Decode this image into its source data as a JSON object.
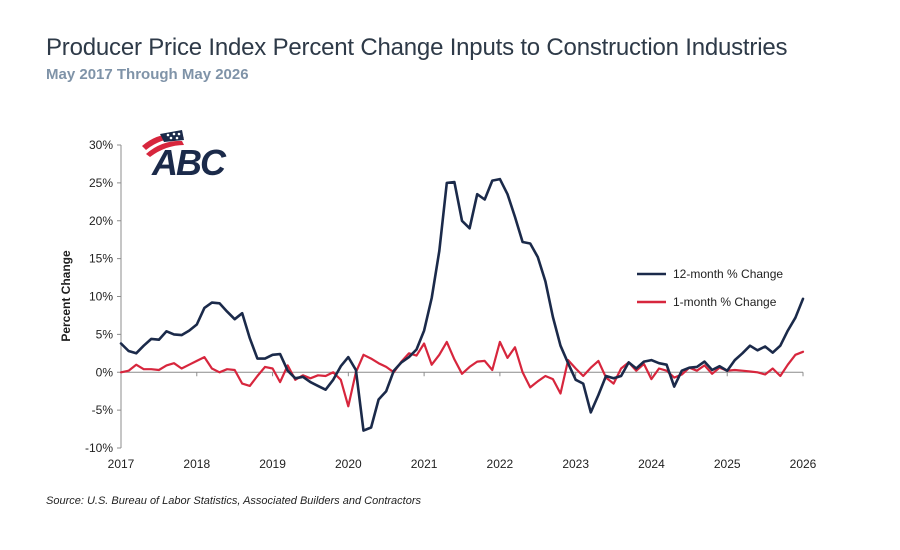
{
  "header": {
    "title": "Producer Price Index Percent Change Inputs to Construction Industries",
    "subtitle": "May 2017 Through May 2026"
  },
  "footer": {
    "source": "Source: U.S. Bureau of Labor Statistics, Associated Builders and Contractors"
  },
  "logo": {
    "text": "ABC",
    "colors": {
      "navy": "#1b2a4a",
      "red": "#d7263d"
    }
  },
  "chart_data": {
    "type": "line",
    "ylabel": "Percent Change",
    "ylim": [
      -10,
      30
    ],
    "yticks": [
      -10,
      -5,
      0,
      5,
      10,
      15,
      20,
      25,
      30
    ],
    "ytick_labels": [
      "-10%",
      "-5%",
      "0%",
      "5%",
      "10%",
      "15%",
      "20%",
      "25%",
      "30%"
    ],
    "xlim": [
      2017,
      2026
    ],
    "xticks": [
      2017,
      2018,
      2019,
      2020,
      2021,
      2022,
      2023,
      2024,
      2025,
      2026
    ],
    "xtick_labels": [
      "2017",
      "2018",
      "2019",
      "2020",
      "2021",
      "2022",
      "2023",
      "2024",
      "2025",
      "2026"
    ],
    "legend_position": "right",
    "grid": false,
    "series": [
      {
        "name": "12-month % Change",
        "color": "#1b2a4a",
        "points": [
          [
            2017.0,
            3.8
          ],
          [
            2017.1,
            2.8
          ],
          [
            2017.2,
            2.5
          ],
          [
            2017.3,
            3.5
          ],
          [
            2017.4,
            4.4
          ],
          [
            2017.5,
            4.3
          ],
          [
            2017.6,
            5.4
          ],
          [
            2017.7,
            5.0
          ],
          [
            2017.8,
            4.9
          ],
          [
            2017.9,
            5.5
          ],
          [
            2018.0,
            6.3
          ],
          [
            2018.1,
            8.5
          ],
          [
            2018.2,
            9.2
          ],
          [
            2018.3,
            9.1
          ],
          [
            2018.4,
            8.0
          ],
          [
            2018.5,
            7.0
          ],
          [
            2018.6,
            7.8
          ],
          [
            2018.7,
            4.5
          ],
          [
            2018.8,
            1.8
          ],
          [
            2018.9,
            1.8
          ],
          [
            2019.0,
            2.3
          ],
          [
            2019.1,
            2.4
          ],
          [
            2019.2,
            0.2
          ],
          [
            2019.3,
            -0.8
          ],
          [
            2019.4,
            -0.6
          ],
          [
            2019.5,
            -1.3
          ],
          [
            2019.6,
            -1.8
          ],
          [
            2019.7,
            -2.3
          ],
          [
            2019.8,
            -1.0
          ],
          [
            2019.9,
            0.8
          ],
          [
            2020.0,
            2.0
          ],
          [
            2020.1,
            0.3
          ],
          [
            2020.2,
            -7.7
          ],
          [
            2020.3,
            -7.3
          ],
          [
            2020.4,
            -3.6
          ],
          [
            2020.5,
            -2.5
          ],
          [
            2020.6,
            0.2
          ],
          [
            2020.7,
            1.3
          ],
          [
            2020.8,
            2.0
          ],
          [
            2020.9,
            3.0
          ],
          [
            2021.0,
            5.5
          ],
          [
            2021.1,
            9.8
          ],
          [
            2021.2,
            16.0
          ],
          [
            2021.3,
            25.0
          ],
          [
            2021.4,
            25.1
          ],
          [
            2021.5,
            20.0
          ],
          [
            2021.6,
            19.0
          ],
          [
            2021.7,
            23.5
          ],
          [
            2021.8,
            22.8
          ],
          [
            2021.9,
            25.3
          ],
          [
            2022.0,
            25.5
          ],
          [
            2022.1,
            23.5
          ],
          [
            2022.2,
            20.5
          ],
          [
            2022.3,
            17.2
          ],
          [
            2022.4,
            17.0
          ],
          [
            2022.5,
            15.2
          ],
          [
            2022.6,
            12.0
          ],
          [
            2022.7,
            7.3
          ],
          [
            2022.8,
            3.5
          ],
          [
            2022.9,
            1.2
          ],
          [
            2023.0,
            -1.0
          ],
          [
            2023.1,
            -1.5
          ],
          [
            2023.2,
            -5.3
          ],
          [
            2023.3,
            -3.0
          ],
          [
            2023.4,
            -0.5
          ],
          [
            2023.5,
            -0.8
          ],
          [
            2023.6,
            -0.5
          ],
          [
            2023.7,
            1.3
          ],
          [
            2023.8,
            0.5
          ],
          [
            2023.9,
            1.4
          ],
          [
            2024.0,
            1.6
          ],
          [
            2024.1,
            1.2
          ],
          [
            2024.2,
            1.0
          ],
          [
            2024.3,
            -1.9
          ],
          [
            2024.4,
            0.2
          ],
          [
            2024.5,
            0.6
          ],
          [
            2024.6,
            0.7
          ],
          [
            2024.7,
            1.4
          ],
          [
            2024.8,
            0.3
          ],
          [
            2024.9,
            0.8
          ],
          [
            2025.0,
            0.2
          ],
          [
            2025.1,
            1.6
          ],
          [
            2025.2,
            2.5
          ],
          [
            2025.3,
            3.5
          ],
          [
            2025.4,
            2.9
          ],
          [
            2025.5,
            3.4
          ],
          [
            2025.6,
            2.6
          ],
          [
            2025.7,
            3.5
          ],
          [
            2025.8,
            5.5
          ],
          [
            2025.9,
            7.2
          ],
          [
            2026.0,
            9.7
          ]
        ]
      },
      {
        "name": "1-month % Change",
        "color": "#d7263d",
        "points": [
          [
            2017.0,
            0.0
          ],
          [
            2017.1,
            0.2
          ],
          [
            2017.2,
            1.0
          ],
          [
            2017.3,
            0.4
          ],
          [
            2017.4,
            0.4
          ],
          [
            2017.5,
            0.3
          ],
          [
            2017.6,
            0.9
          ],
          [
            2017.7,
            1.2
          ],
          [
            2017.8,
            0.5
          ],
          [
            2017.9,
            1.0
          ],
          [
            2018.0,
            1.5
          ],
          [
            2018.1,
            2.0
          ],
          [
            2018.2,
            0.5
          ],
          [
            2018.3,
            0.0
          ],
          [
            2018.4,
            0.4
          ],
          [
            2018.5,
            0.3
          ],
          [
            2018.6,
            -1.5
          ],
          [
            2018.7,
            -1.8
          ],
          [
            2018.8,
            -0.5
          ],
          [
            2018.9,
            0.7
          ],
          [
            2019.0,
            0.5
          ],
          [
            2019.1,
            -1.3
          ],
          [
            2019.2,
            0.9
          ],
          [
            2019.3,
            -1.0
          ],
          [
            2019.4,
            -0.4
          ],
          [
            2019.5,
            -0.8
          ],
          [
            2019.6,
            -0.4
          ],
          [
            2019.7,
            -0.5
          ],
          [
            2019.8,
            0.0
          ],
          [
            2019.9,
            -1.0
          ],
          [
            2020.0,
            -4.5
          ],
          [
            2020.1,
            0.0
          ],
          [
            2020.2,
            2.3
          ],
          [
            2020.3,
            1.8
          ],
          [
            2020.4,
            1.2
          ],
          [
            2020.5,
            0.7
          ],
          [
            2020.6,
            0.0
          ],
          [
            2020.7,
            1.4
          ],
          [
            2020.8,
            2.5
          ],
          [
            2020.9,
            2.2
          ],
          [
            2021.0,
            3.8
          ],
          [
            2021.1,
            1.0
          ],
          [
            2021.2,
            2.3
          ],
          [
            2021.3,
            4.0
          ],
          [
            2021.4,
            1.7
          ],
          [
            2021.5,
            -0.2
          ],
          [
            2021.6,
            0.7
          ],
          [
            2021.7,
            1.4
          ],
          [
            2021.8,
            1.5
          ],
          [
            2021.9,
            0.3
          ],
          [
            2022.0,
            4.0
          ],
          [
            2022.1,
            1.9
          ],
          [
            2022.2,
            3.3
          ],
          [
            2022.3,
            0.0
          ],
          [
            2022.4,
            -2.0
          ],
          [
            2022.5,
            -1.2
          ],
          [
            2022.6,
            -0.5
          ],
          [
            2022.7,
            -0.9
          ],
          [
            2022.8,
            -2.8
          ],
          [
            2022.9,
            1.6
          ],
          [
            2023.0,
            0.5
          ],
          [
            2023.1,
            -0.5
          ],
          [
            2023.2,
            0.6
          ],
          [
            2023.3,
            1.5
          ],
          [
            2023.4,
            -0.7
          ],
          [
            2023.5,
            -1.5
          ],
          [
            2023.6,
            0.5
          ],
          [
            2023.7,
            1.3
          ],
          [
            2023.8,
            0.2
          ],
          [
            2023.9,
            1.1
          ],
          [
            2024.0,
            -0.9
          ],
          [
            2024.1,
            0.5
          ],
          [
            2024.2,
            0.2
          ],
          [
            2024.3,
            -0.7
          ],
          [
            2024.4,
            -0.3
          ],
          [
            2024.5,
            0.6
          ],
          [
            2024.6,
            0.2
          ],
          [
            2024.7,
            0.9
          ],
          [
            2024.8,
            -0.2
          ],
          [
            2024.9,
            0.6
          ],
          [
            2025.0,
            0.2
          ],
          [
            2025.1,
            0.3
          ],
          [
            2025.2,
            0.2
          ],
          [
            2025.3,
            0.1
          ],
          [
            2025.4,
            0.0
          ],
          [
            2025.5,
            -0.3
          ],
          [
            2025.6,
            0.5
          ],
          [
            2025.7,
            -0.5
          ],
          [
            2025.8,
            1.0
          ],
          [
            2025.9,
            2.3
          ],
          [
            2026.0,
            2.7
          ]
        ]
      }
    ]
  }
}
